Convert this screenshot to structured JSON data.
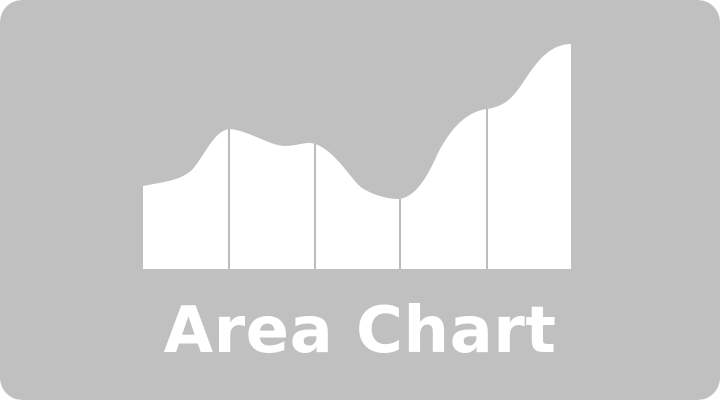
{
  "colors": {
    "background": "#c0c0c0",
    "area_fill": "#ffffff",
    "divider": "#7a7a7a",
    "title_text": "#ffffff"
  },
  "icon": "area-chart-icon",
  "title": "Area Chart"
}
